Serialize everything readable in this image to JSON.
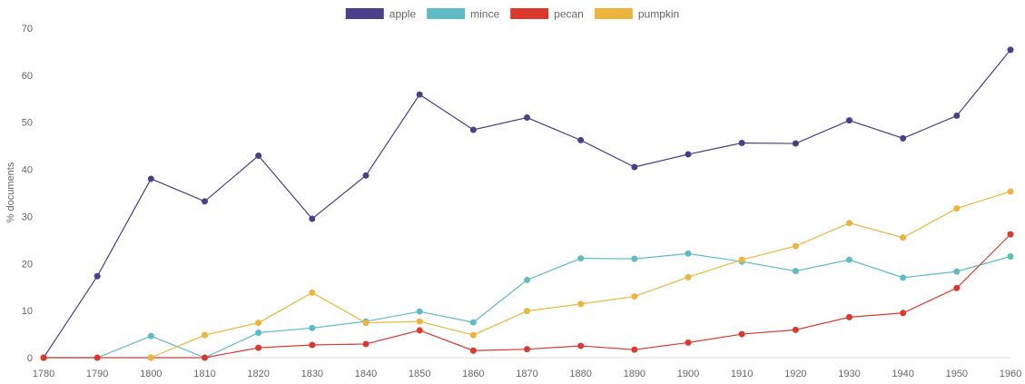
{
  "chart_data": {
    "type": "line",
    "title": "",
    "xlabel": "",
    "ylabel": "% documents",
    "ylim": [
      0,
      70
    ],
    "yticks": [
      0,
      10,
      20,
      30,
      40,
      50,
      60,
      70
    ],
    "grid": "horizontal-zero-line-only",
    "legend": "top-center",
    "categories": [
      "1780",
      "1790",
      "1800",
      "1810",
      "1820",
      "1830",
      "1840",
      "1850",
      "1860",
      "1870",
      "1880",
      "1890",
      "1900",
      "1910",
      "1920",
      "1930",
      "1940",
      "1950",
      "1960"
    ],
    "series": [
      {
        "name": "apple",
        "color": "#4b3f8a",
        "values": [
          0,
          17.3,
          38,
          33.2,
          42.9,
          29.5,
          38.7,
          55.9,
          48.4,
          51,
          46.2,
          40.5,
          43.2,
          45.6,
          45.5,
          50.4,
          46.6,
          51.4,
          65.4
        ]
      },
      {
        "name": "mince",
        "color": "#5fbcc4",
        "values": [
          0,
          0,
          4.6,
          0,
          5.3,
          6.3,
          7.7,
          9.8,
          7.5,
          16.5,
          21.1,
          21,
          22.1,
          20.4,
          18.4,
          20.8,
          17,
          18.3,
          21.5
        ]
      },
      {
        "name": "pecan",
        "color": "#d93a2d",
        "values": [
          0,
          0,
          0,
          0,
          2.1,
          2.7,
          2.9,
          5.8,
          1.5,
          1.8,
          2.5,
          1.7,
          3.2,
          5,
          5.9,
          8.6,
          9.5,
          14.8,
          26.2
        ]
      },
      {
        "name": "pumpkin",
        "color": "#eeb53d",
        "values": [
          null,
          null,
          0,
          4.8,
          7.4,
          13.8,
          7.4,
          7.7,
          4.8,
          9.9,
          11.4,
          13,
          17.1,
          20.8,
          23.7,
          28.6,
          25.5,
          31.7,
          35.3
        ]
      }
    ]
  }
}
